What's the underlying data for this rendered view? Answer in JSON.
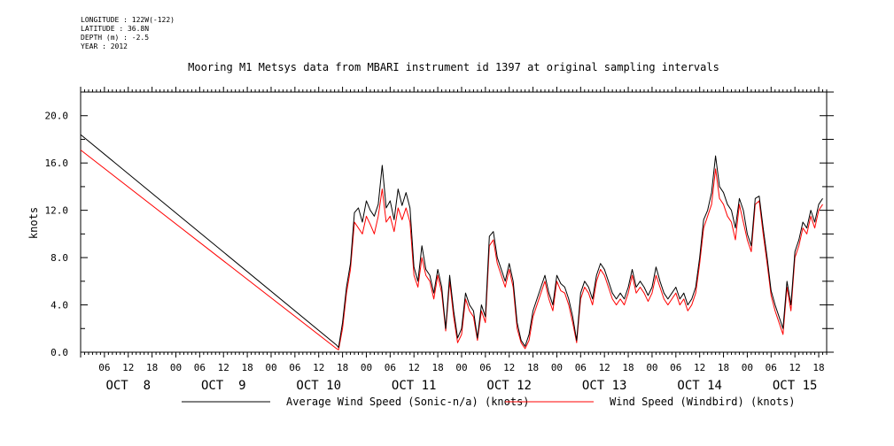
{
  "meta": {
    "longitude": "LONGITUDE : 122W(-122)",
    "latitude": "LATITUDE : 36.8N",
    "depth": "DEPTH (m) : -2.5",
    "year": "YEAR : 2012"
  },
  "chart_data": {
    "type": "line",
    "title": "Mooring M1 Metsys data from MBARI instrument id 1397 at original sampling intervals",
    "ylabel": "knots",
    "xlabel": "",
    "ylim": [
      0,
      22
    ],
    "xlim_hours": [
      0,
      188
    ],
    "y_ticks": [
      "0.0",
      "4.0",
      "8.0",
      "12.0",
      "16.0",
      "20.0"
    ],
    "hour_labels": [
      "06",
      "12",
      "18",
      "00"
    ],
    "day_labels": [
      "OCT  8",
      "OCT  9",
      "OCT 10",
      "OCT 11",
      "OCT 12",
      "OCT 13",
      "OCT 14",
      "OCT 15"
    ],
    "x_unit": "hours since OCT 8 00:00",
    "grid": false,
    "legend_position": "bottom",
    "series": [
      {
        "name": "Average Wind Speed (Sonic-n/a) (knots)",
        "color": "#000000",
        "points": [
          [
            0,
            18.4
          ],
          [
            64.5,
            0.6
          ],
          [
            65,
            0.4
          ],
          [
            66,
            2.5
          ],
          [
            67,
            5.5
          ],
          [
            68,
            7.5
          ],
          [
            69,
            11.8
          ],
          [
            70,
            12.2
          ],
          [
            71,
            11
          ],
          [
            72,
            12.8
          ],
          [
            73,
            12
          ],
          [
            74,
            11.5
          ],
          [
            75,
            12.5
          ],
          [
            76,
            15.8
          ],
          [
            77,
            12.2
          ],
          [
            78,
            12.8
          ],
          [
            79,
            11.2
          ],
          [
            80,
            13.8
          ],
          [
            81,
            12.4
          ],
          [
            82,
            13.5
          ],
          [
            83,
            12.2
          ],
          [
            84,
            7.2
          ],
          [
            85,
            6
          ],
          [
            86,
            9
          ],
          [
            87,
            7
          ],
          [
            88,
            6.5
          ],
          [
            89,
            5
          ],
          [
            90,
            7
          ],
          [
            91,
            5.5
          ],
          [
            92,
            2
          ],
          [
            93,
            6.5
          ],
          [
            94,
            3.5
          ],
          [
            95,
            1.2
          ],
          [
            96,
            2
          ],
          [
            97,
            5
          ],
          [
            98,
            4
          ],
          [
            99,
            3.5
          ],
          [
            100,
            1.2
          ],
          [
            101,
            4
          ],
          [
            102,
            3
          ],
          [
            103,
            9.8
          ],
          [
            104,
            10.2
          ],
          [
            105,
            8
          ],
          [
            106,
            7
          ],
          [
            107,
            6
          ],
          [
            108,
            7.5
          ],
          [
            109,
            6
          ],
          [
            110,
            2.5
          ],
          [
            111,
            1
          ],
          [
            112,
            0.5
          ],
          [
            113,
            1.5
          ],
          [
            114,
            3.5
          ],
          [
            115,
            4.5
          ],
          [
            116,
            5.5
          ],
          [
            117,
            6.5
          ],
          [
            118,
            5
          ],
          [
            119,
            4
          ],
          [
            120,
            6.5
          ],
          [
            121,
            5.8
          ],
          [
            122,
            5.5
          ],
          [
            123,
            4.5
          ],
          [
            124,
            3
          ],
          [
            125,
            1
          ],
          [
            126,
            5
          ],
          [
            127,
            6
          ],
          [
            128,
            5.5
          ],
          [
            129,
            4.5
          ],
          [
            130,
            6.5
          ],
          [
            131,
            7.5
          ],
          [
            132,
            7
          ],
          [
            133,
            6
          ],
          [
            134,
            5
          ],
          [
            135,
            4.5
          ],
          [
            136,
            5
          ],
          [
            137,
            4.5
          ],
          [
            138,
            5.5
          ],
          [
            139,
            7
          ],
          [
            140,
            5.5
          ],
          [
            141,
            6
          ],
          [
            142,
            5.5
          ],
          [
            143,
            4.8
          ],
          [
            144,
            5.5
          ],
          [
            145,
            7.2
          ],
          [
            146,
            6
          ],
          [
            147,
            5
          ],
          [
            148,
            4.5
          ],
          [
            149,
            5
          ],
          [
            150,
            5.5
          ],
          [
            151,
            4.5
          ],
          [
            152,
            5
          ],
          [
            153,
            4
          ],
          [
            154,
            4.5
          ],
          [
            155,
            5.5
          ],
          [
            156,
            8
          ],
          [
            157,
            11.2
          ],
          [
            158,
            12
          ],
          [
            159,
            13.5
          ],
          [
            160,
            16.6
          ],
          [
            161,
            14
          ],
          [
            162,
            13.5
          ],
          [
            163,
            12.5
          ],
          [
            164,
            12
          ],
          [
            165,
            10.5
          ],
          [
            166,
            13
          ],
          [
            167,
            12
          ],
          [
            168,
            10
          ],
          [
            169,
            9
          ],
          [
            170,
            13
          ],
          [
            171,
            13.2
          ],
          [
            172,
            10.5
          ],
          [
            173,
            8
          ],
          [
            174,
            5.2
          ],
          [
            175,
            4
          ],
          [
            176,
            3
          ],
          [
            177,
            2
          ],
          [
            178,
            6
          ],
          [
            179,
            4
          ],
          [
            180,
            8.5
          ],
          [
            181,
            9.5
          ],
          [
            182,
            11
          ],
          [
            183,
            10.5
          ],
          [
            184,
            12
          ],
          [
            185,
            11
          ],
          [
            186,
            12.5
          ],
          [
            187,
            13
          ]
        ]
      },
      {
        "name": "Wind Speed (Windbird) (knots)",
        "color": "#ff0000",
        "points": [
          [
            0,
            17.1
          ],
          [
            64.5,
            0.3
          ],
          [
            65,
            0.2
          ],
          [
            66,
            2
          ],
          [
            67,
            5
          ],
          [
            68,
            7
          ],
          [
            69,
            11
          ],
          [
            70,
            10.5
          ],
          [
            71,
            10
          ],
          [
            72,
            11.5
          ],
          [
            73,
            10.8
          ],
          [
            74,
            10
          ],
          [
            75,
            11.5
          ],
          [
            76,
            13.8
          ],
          [
            77,
            11
          ],
          [
            78,
            11.5
          ],
          [
            79,
            10.2
          ],
          [
            80,
            12.2
          ],
          [
            81,
            11.2
          ],
          [
            82,
            12.2
          ],
          [
            83,
            11
          ],
          [
            84,
            6.5
          ],
          [
            85,
            5.5
          ],
          [
            86,
            8
          ],
          [
            87,
            6.5
          ],
          [
            88,
            6
          ],
          [
            89,
            4.5
          ],
          [
            90,
            6.5
          ],
          [
            91,
            5
          ],
          [
            92,
            1.8
          ],
          [
            93,
            6
          ],
          [
            94,
            3
          ],
          [
            95,
            0.8
          ],
          [
            96,
            1.5
          ],
          [
            97,
            4.5
          ],
          [
            98,
            3.5
          ],
          [
            99,
            3
          ],
          [
            100,
            1
          ],
          [
            101,
            3.5
          ],
          [
            102,
            2.5
          ],
          [
            103,
            9
          ],
          [
            104,
            9.5
          ],
          [
            105,
            7.5
          ],
          [
            106,
            6.5
          ],
          [
            107,
            5.5
          ],
          [
            108,
            7
          ],
          [
            109,
            5.5
          ],
          [
            110,
            2
          ],
          [
            111,
            0.8
          ],
          [
            112,
            0.3
          ],
          [
            113,
            1
          ],
          [
            114,
            3
          ],
          [
            115,
            4
          ],
          [
            116,
            5
          ],
          [
            117,
            6
          ],
          [
            118,
            4.5
          ],
          [
            119,
            3.5
          ],
          [
            120,
            6
          ],
          [
            121,
            5.2
          ],
          [
            122,
            5
          ],
          [
            123,
            4
          ],
          [
            124,
            2.5
          ],
          [
            125,
            0.8
          ],
          [
            126,
            4.5
          ],
          [
            127,
            5.5
          ],
          [
            128,
            5
          ],
          [
            129,
            4
          ],
          [
            130,
            6
          ],
          [
            131,
            7
          ],
          [
            132,
            6.5
          ],
          [
            133,
            5.5
          ],
          [
            134,
            4.5
          ],
          [
            135,
            4
          ],
          [
            136,
            4.5
          ],
          [
            137,
            4
          ],
          [
            138,
            5
          ],
          [
            139,
            6.5
          ],
          [
            140,
            5
          ],
          [
            141,
            5.5
          ],
          [
            142,
            5
          ],
          [
            143,
            4.3
          ],
          [
            144,
            5
          ],
          [
            145,
            6.5
          ],
          [
            146,
            5.5
          ],
          [
            147,
            4.5
          ],
          [
            148,
            4
          ],
          [
            149,
            4.5
          ],
          [
            150,
            5
          ],
          [
            151,
            4
          ],
          [
            152,
            4.5
          ],
          [
            153,
            3.5
          ],
          [
            154,
            4
          ],
          [
            155,
            5
          ],
          [
            156,
            7.5
          ],
          [
            157,
            10.5
          ],
          [
            158,
            11.5
          ],
          [
            159,
            12.5
          ],
          [
            160,
            15.5
          ],
          [
            161,
            13
          ],
          [
            162,
            12.5
          ],
          [
            163,
            11.5
          ],
          [
            164,
            11
          ],
          [
            165,
            9.5
          ],
          [
            166,
            12.5
          ],
          [
            167,
            11
          ],
          [
            168,
            9.5
          ],
          [
            169,
            8.5
          ],
          [
            170,
            12.5
          ],
          [
            171,
            12.8
          ],
          [
            172,
            10
          ],
          [
            173,
            7.5
          ],
          [
            174,
            4.8
          ],
          [
            175,
            3.5
          ],
          [
            176,
            2.5
          ],
          [
            177,
            1.5
          ],
          [
            178,
            5.5
          ],
          [
            179,
            3.5
          ],
          [
            180,
            8
          ],
          [
            181,
            9
          ],
          [
            182,
            10.5
          ],
          [
            183,
            10
          ],
          [
            184,
            11.5
          ],
          [
            185,
            10.5
          ],
          [
            186,
            12
          ],
          [
            187,
            12.5
          ]
        ]
      }
    ]
  }
}
